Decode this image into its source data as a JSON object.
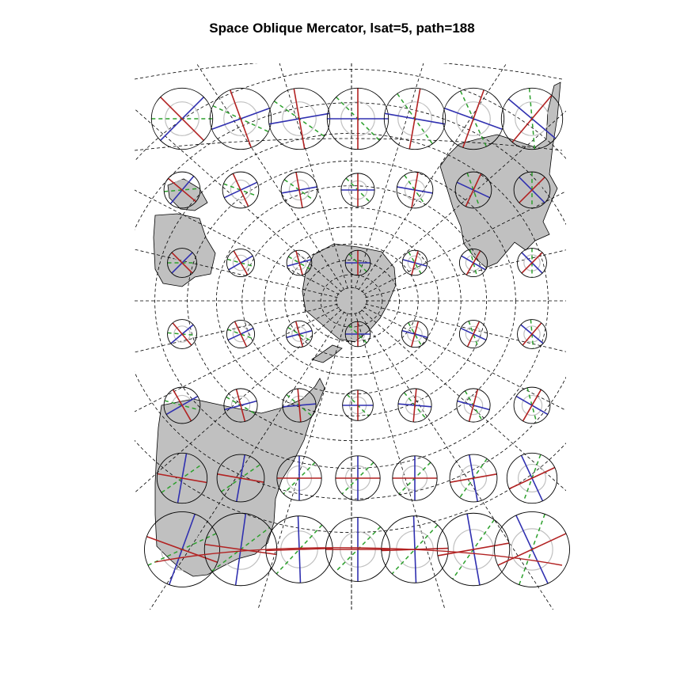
{
  "title": "Space Oblique Mercator, lsat=5, path=188",
  "projection": {
    "name": "Space Oblique Mercator",
    "lsat": 5,
    "path": 188
  },
  "styles": {
    "background": "#ffffff",
    "land_fill": "#c0c0c0",
    "land_stroke": "#000000",
    "graticule_stroke": "#000000",
    "graticule_dash": "dashed",
    "indicatrix_circle": "#000000",
    "indicatrix_reference": "#c0c0c0",
    "meridian_tick": "#b22222",
    "parallel_tick": "#3030b0",
    "max_scale_axis": "#2ca02c"
  },
  "indicatrix_grid": {
    "rows": 7,
    "cols": 7,
    "relative_radii": [
      [
        0.44,
        0.44,
        0.44,
        0.44,
        0.44,
        0.44,
        0.44
      ],
      [
        0.26,
        0.26,
        0.26,
        0.24,
        0.26,
        0.26,
        0.26
      ],
      [
        0.21,
        0.2,
        0.18,
        0.18,
        0.18,
        0.2,
        0.21
      ],
      [
        0.21,
        0.2,
        0.19,
        0.18,
        0.19,
        0.2,
        0.21
      ],
      [
        0.26,
        0.24,
        0.24,
        0.22,
        0.24,
        0.24,
        0.26
      ],
      [
        0.36,
        0.34,
        0.32,
        0.32,
        0.32,
        0.34,
        0.36
      ],
      [
        0.54,
        0.52,
        0.48,
        0.46,
        0.48,
        0.52,
        0.54
      ]
    ],
    "meridian_bearing_deg": [
      [
        -45,
        -20,
        -10,
        0,
        10,
        20,
        40
      ],
      [
        -50,
        -25,
        -10,
        0,
        10,
        25,
        45
      ],
      [
        -45,
        -30,
        -15,
        0,
        15,
        30,
        45
      ],
      [
        -40,
        -25,
        -15,
        0,
        15,
        25,
        40
      ],
      [
        -30,
        -15,
        -5,
        0,
        5,
        15,
        30
      ],
      [
        -80,
        -80,
        90,
        90,
        90,
        80,
        65
      ],
      [
        -70,
        -82,
        88,
        90,
        88,
        80,
        65
      ]
    ]
  }
}
